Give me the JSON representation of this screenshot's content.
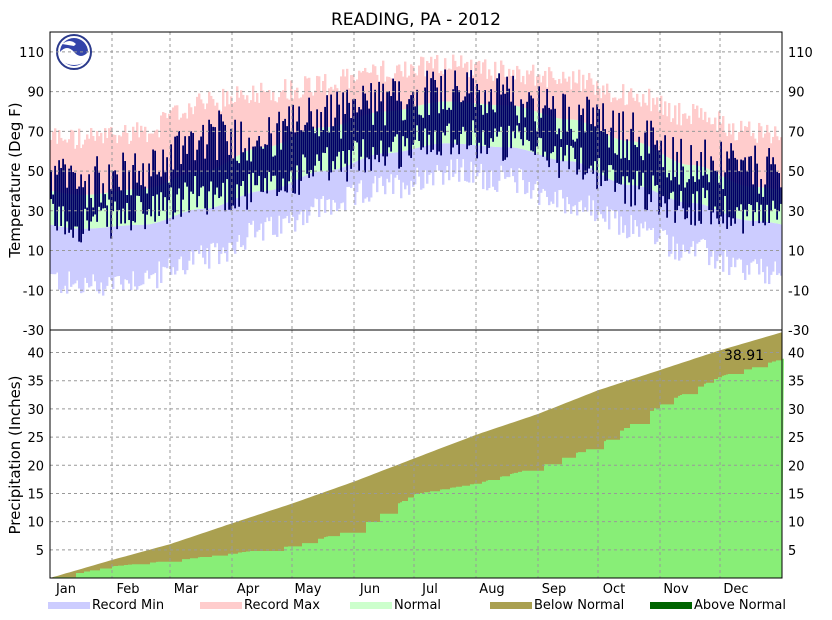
{
  "chart_data": {
    "title": "READING, PA - 2012",
    "months": [
      "Jan",
      "Feb",
      "Mar",
      "Apr",
      "May",
      "Jun",
      "Jul",
      "Aug",
      "Sep",
      "Oct",
      "Nov",
      "Dec"
    ],
    "temperature": {
      "type": "bar",
      "ylabel": "Temperature (Deg F)",
      "ylim": [
        -30,
        120
      ],
      "yticks": [
        -30,
        -10,
        10,
        30,
        50,
        70,
        90,
        110
      ],
      "grid": true,
      "normal_low_by_month": [
        21,
        23,
        31,
        40,
        50,
        59,
        64,
        62,
        55,
        43,
        34,
        25
      ],
      "normal_high_by_month": [
        38,
        41,
        50,
        62,
        72,
        80,
        85,
        83,
        76,
        65,
        53,
        42
      ],
      "record_min_by_month": [
        -8,
        -4,
        6,
        20,
        32,
        42,
        50,
        46,
        34,
        22,
        10,
        0
      ],
      "record_max_by_month": [
        66,
        70,
        84,
        90,
        94,
        100,
        104,
        100,
        96,
        88,
        78,
        70
      ],
      "observed_high_by_month": [
        44,
        48,
        68,
        66,
        78,
        84,
        92,
        86,
        78,
        68,
        54,
        50
      ],
      "observed_low_by_month": [
        24,
        28,
        38,
        40,
        52,
        60,
        68,
        64,
        56,
        42,
        32,
        28
      ]
    },
    "precipitation": {
      "type": "area",
      "ylabel": "Precipitation (Inches)",
      "ylim": [
        0,
        44
      ],
      "yticks": [
        5,
        10,
        15,
        20,
        25,
        30,
        35,
        40
      ],
      "grid": true,
      "annotation": "38.91",
      "normal_cumulative_by_month_end": [
        3.2,
        6.0,
        9.7,
        13.2,
        17.1,
        21.2,
        25.4,
        29.1,
        33.3,
        36.9,
        40.4,
        43.6
      ],
      "observed_cumulative_by_month_end": [
        2.1,
        3.1,
        4.4,
        5.7,
        8.7,
        14.9,
        16.8,
        19.8,
        23.6,
        30.8,
        35.8,
        38.91
      ]
    },
    "legend": [
      {
        "label": "Record Min",
        "color": "#ccccff"
      },
      {
        "label": "Record Max",
        "color": "#ffcccc"
      },
      {
        "label": "Normal",
        "color": "#ccffcc"
      },
      {
        "label": "Below Normal",
        "color": "#aaa050"
      },
      {
        "label": "Above Normal",
        "color": "#006400"
      }
    ],
    "colors": {
      "record_min": "#ccccff",
      "record_max": "#ffcccc",
      "normal": "#ccffcc",
      "observed": "#000066",
      "below_normal": "#aaa050",
      "precip_observed": "#88ee77",
      "grid": "#999999"
    }
  }
}
